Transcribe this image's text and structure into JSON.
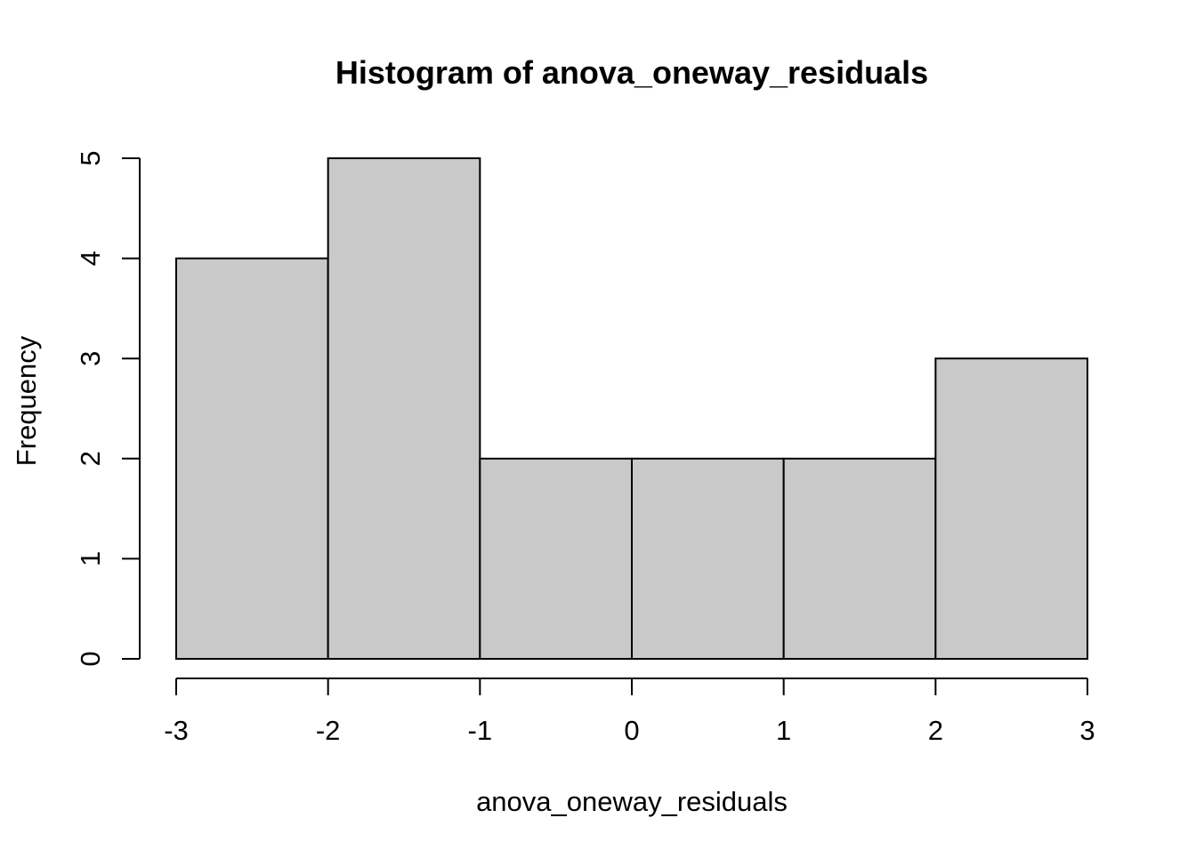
{
  "chart_data": {
    "type": "bar",
    "subtype": "histogram",
    "title": "Histogram of anova_oneway_residuals",
    "xlabel": "anova_oneway_residuals",
    "ylabel": "Frequency",
    "bin_edges": [
      -3,
      -2,
      -1,
      0,
      1,
      2,
      3
    ],
    "counts": [
      4,
      5,
      2,
      2,
      2,
      3
    ],
    "x_ticks": [
      "-3",
      "-2",
      "-1",
      "0",
      "1",
      "2",
      "3"
    ],
    "x_tick_values": [
      -3,
      -2,
      -1,
      0,
      1,
      2,
      3
    ],
    "y_ticks": [
      "0",
      "1",
      "2",
      "3",
      "4",
      "5"
    ],
    "y_tick_values": [
      0,
      1,
      2,
      3,
      4,
      5
    ],
    "xlim": [
      -3,
      3
    ],
    "ylim": [
      0,
      5
    ],
    "grid": false,
    "legend": false,
    "bar_fill": "#C9C9C9",
    "bar_border": "#000000",
    "axis_color": "#000000",
    "background": "#FFFFFF"
  }
}
